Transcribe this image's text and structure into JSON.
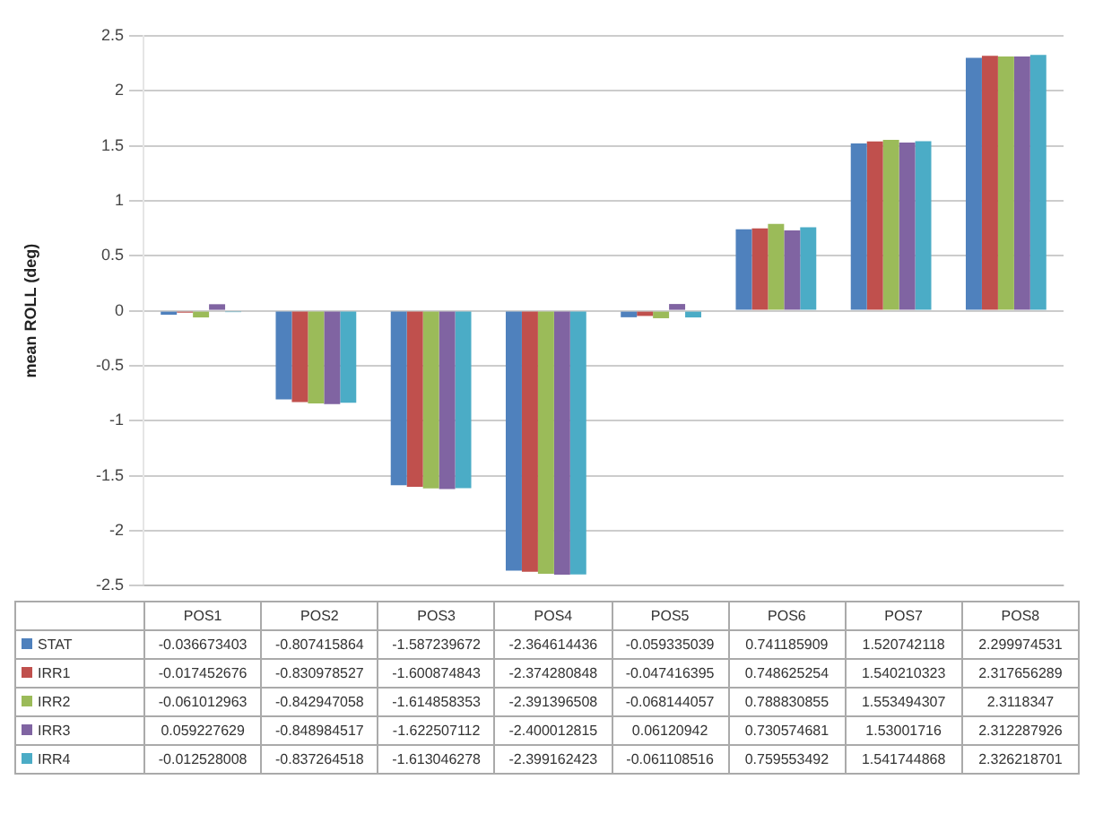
{
  "chart_data": {
    "type": "bar",
    "ylabel": "mean ROLL (deg)",
    "categories": [
      "POS1",
      "POS2",
      "POS3",
      "POS4",
      "POS5",
      "POS6",
      "POS7",
      "POS8"
    ],
    "series": [
      {
        "name": "STAT",
        "color": "#4f81bd",
        "values": [
          -0.036673403,
          -0.807415864,
          -1.587239672,
          -2.364614436,
          -0.059335039,
          0.741185909,
          1.520742118,
          2.299974531
        ]
      },
      {
        "name": "IRR1",
        "color": "#c0504d",
        "values": [
          -0.017452676,
          -0.830978527,
          -1.600874843,
          -2.374280848,
          -0.047416395,
          0.748625254,
          1.540210323,
          2.317656289
        ]
      },
      {
        "name": "IRR2",
        "color": "#9bbb59",
        "values": [
          -0.061012963,
          -0.842947058,
          -1.614858353,
          -2.391396508,
          -0.068144057,
          0.788830855,
          1.553494307,
          2.3118347
        ]
      },
      {
        "name": "IRR3",
        "color": "#8064a2",
        "values": [
          0.059227629,
          -0.848984517,
          -1.622507112,
          -2.400012815,
          0.06120942,
          0.730574681,
          1.53001716,
          2.312287926
        ]
      },
      {
        "name": "IRR4",
        "color": "#4bacc6",
        "values": [
          -0.012528008,
          -0.837264518,
          -1.613046278,
          -2.399162423,
          -0.061108516,
          0.759553492,
          1.541744868,
          2.326218701
        ]
      }
    ],
    "ylim": [
      -2.5,
      2.5
    ],
    "yticks": [
      -2.5,
      -2,
      -1.5,
      -1,
      -0.5,
      0,
      0.5,
      1,
      1.5,
      2,
      2.5
    ],
    "grid": "y",
    "legend": "bottom left",
    "data_labels": true
  }
}
